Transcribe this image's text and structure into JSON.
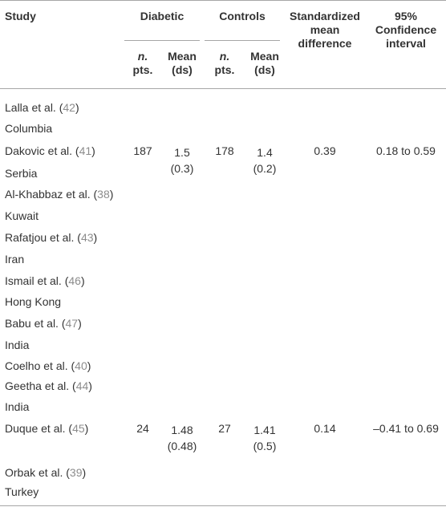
{
  "headers": {
    "study": "Study",
    "diabetic": "Diabetic",
    "controls": "Controls",
    "smd_line1": "Standardized",
    "smd_line2": "mean",
    "smd_line3": "difference",
    "ci_line1": "95%",
    "ci_line2": "Confidence",
    "ci_line3": "interval",
    "n_italic": "n.",
    "n_pts": "pts.",
    "mean": "Mean",
    "ds": "(ds)"
  },
  "rows": [
    {
      "name": "Lalla et al. (",
      "ref": "42",
      "close": ")"
    },
    {
      "name": "Columbia"
    },
    {
      "name": "Dakovic et al. (",
      "ref": "41",
      "close": ")",
      "d_n": "187",
      "d_mean": "1.5",
      "d_sd": "(0.3)",
      "c_n": "178",
      "c_mean": "1.4",
      "c_sd": "(0.2)",
      "smd": "0.39",
      "ci": "0.18 to 0.59"
    },
    {
      "name": "Serbia"
    },
    {
      "name": "Al-Khabbaz et al. (",
      "ref": "38",
      "close": ")"
    },
    {
      "name": "Kuwait"
    },
    {
      "name": "Rafatjou et al. (",
      "ref": "43",
      "close": ")"
    },
    {
      "name": "Iran"
    },
    {
      "name": "Ismail et al. (",
      "ref": "46",
      "close": ")"
    },
    {
      "name": "Hong Kong"
    },
    {
      "name": "Babu et al. (",
      "ref": "47",
      "close": ")"
    },
    {
      "name": "India"
    },
    {
      "name": "Coelho et al. (",
      "ref": "40",
      "close": ")"
    },
    {
      "name": "Geetha et al. (",
      "ref": "44",
      "close": ")"
    },
    {
      "name": "India"
    },
    {
      "name": "Duque et al. (",
      "ref": "45",
      "close": ")",
      "d_n": "24",
      "d_mean": "1.48",
      "d_sd": "(0.48)",
      "c_n": "27",
      "c_mean": "1.41",
      "c_sd": "(0.5)",
      "smd": "0.14",
      "ci": "–0.41 to 0.69"
    },
    {
      "name": ""
    },
    {
      "name": "Orbak et al. (",
      "ref": "39",
      "close": ")"
    },
    {
      "name": "Turkey"
    }
  ]
}
